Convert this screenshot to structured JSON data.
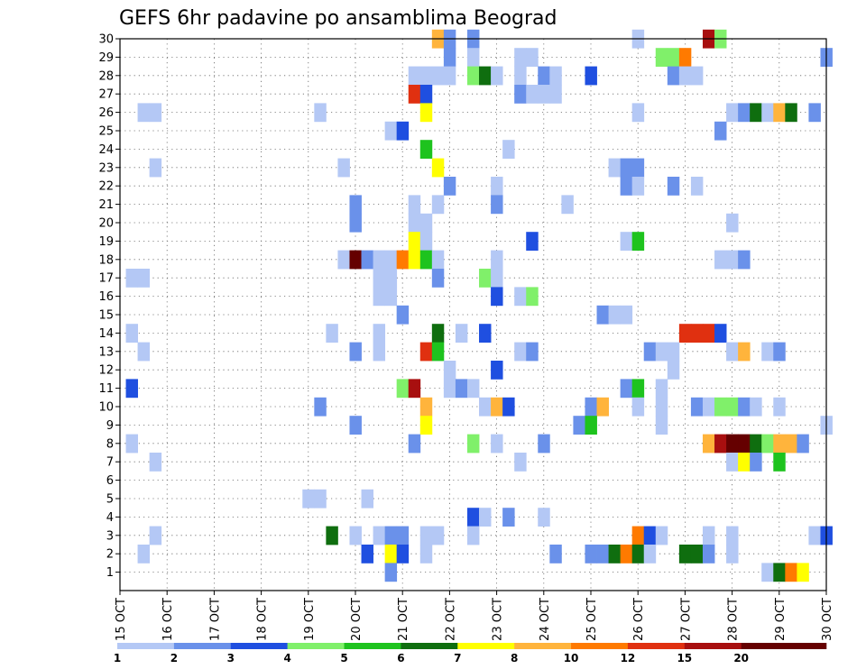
{
  "chart_data": {
    "type": "heatmap",
    "title": "GEFS 6hr padavine po ansamblima Beograd",
    "x_tick_labels": [
      "15 OCT",
      "16 OCT",
      "17 OCT",
      "18 OCT",
      "19 OCT",
      "20 OCT",
      "21 OCT",
      "22 OCT",
      "23 OCT",
      "24 OCT",
      "25 OCT",
      "26 OCT",
      "27 OCT",
      "28 OCT",
      "29 OCT",
      "30 OCT"
    ],
    "y_tick_labels": [
      "1",
      "2",
      "3",
      "4",
      "5",
      "6",
      "7",
      "8",
      "9",
      "10",
      "11",
      "12",
      "13",
      "14",
      "15",
      "16",
      "17",
      "18",
      "19",
      "20",
      "21",
      "22",
      "23",
      "24",
      "25",
      "26",
      "27",
      "28",
      "29",
      "30"
    ],
    "xlim_days": [
      15,
      30
    ],
    "ylim": [
      0,
      30
    ],
    "grid": true,
    "colorbar": {
      "labels": [
        "1",
        "2",
        "3",
        "4",
        "5",
        "6",
        "7",
        "8",
        "10",
        "12",
        "15",
        "20"
      ],
      "colors": [
        "#b4c8f5",
        "#6a91ea",
        "#1f4fe0",
        "#80f06a",
        "#1ec31e",
        "#0f6e0f",
        "#ffff00",
        "#ffb43c",
        "#ff7a00",
        "#e03010",
        "#a80f0f",
        "#650000"
      ]
    },
    "cells_note_format": "[day_of_month_fractional, member, class_index]",
    "cells": [
      [
        21.75,
        30,
        7
      ],
      [
        22.0,
        30,
        1
      ],
      [
        22.5,
        30,
        1
      ],
      [
        26.0,
        30,
        0
      ],
      [
        27.5,
        30,
        10
      ],
      [
        27.75,
        30,
        3
      ],
      [
        22.0,
        29,
        1
      ],
      [
        22.5,
        29,
        0
      ],
      [
        23.5,
        29,
        0
      ],
      [
        23.75,
        29,
        0
      ],
      [
        26.5,
        29,
        3
      ],
      [
        26.75,
        29,
        3
      ],
      [
        27.0,
        29,
        8
      ],
      [
        30.0,
        29,
        1
      ],
      [
        21.25,
        28,
        0
      ],
      [
        21.5,
        28,
        0
      ],
      [
        21.75,
        28,
        0
      ],
      [
        22.0,
        28,
        0
      ],
      [
        22.5,
        28,
        3
      ],
      [
        22.75,
        28,
        5
      ],
      [
        23.0,
        28,
        0
      ],
      [
        23.5,
        28,
        0
      ],
      [
        24.0,
        28,
        1
      ],
      [
        24.25,
        28,
        0
      ],
      [
        25.0,
        28,
        2
      ],
      [
        26.75,
        28,
        1
      ],
      [
        27.0,
        28,
        0
      ],
      [
        27.25,
        28,
        0
      ],
      [
        21.25,
        27,
        9
      ],
      [
        21.5,
        27,
        2
      ],
      [
        23.5,
        27,
        1
      ],
      [
        23.75,
        27,
        0
      ],
      [
        24.0,
        27,
        0
      ],
      [
        24.25,
        27,
        0
      ],
      [
        15.5,
        26,
        0
      ],
      [
        15.75,
        26,
        0
      ],
      [
        19.25,
        26,
        0
      ],
      [
        21.5,
        26,
        6
      ],
      [
        26.0,
        26,
        0
      ],
      [
        28.0,
        26,
        0
      ],
      [
        28.25,
        26,
        1
      ],
      [
        28.5,
        26,
        5
      ],
      [
        28.75,
        26,
        0
      ],
      [
        29.0,
        26,
        7
      ],
      [
        29.25,
        26,
        5
      ],
      [
        29.75,
        26,
        1
      ],
      [
        20.75,
        25,
        0
      ],
      [
        21.0,
        25,
        2
      ],
      [
        27.75,
        25,
        1
      ],
      [
        21.5,
        24,
        4
      ],
      [
        23.25,
        24,
        0
      ],
      [
        15.75,
        23,
        0
      ],
      [
        19.75,
        23,
        0
      ],
      [
        21.75,
        23,
        6
      ],
      [
        25.5,
        23,
        0
      ],
      [
        25.75,
        23,
        1
      ],
      [
        26.0,
        23,
        1
      ],
      [
        22.0,
        22,
        1
      ],
      [
        23.0,
        22,
        0
      ],
      [
        25.75,
        22,
        1
      ],
      [
        26.0,
        22,
        0
      ],
      [
        26.75,
        22,
        1
      ],
      [
        27.25,
        22,
        0
      ],
      [
        20.0,
        21,
        1
      ],
      [
        21.25,
        21,
        0
      ],
      [
        21.75,
        21,
        0
      ],
      [
        23.0,
        21,
        1
      ],
      [
        24.5,
        21,
        0
      ],
      [
        20.0,
        20,
        1
      ],
      [
        21.25,
        20,
        0
      ],
      [
        21.5,
        20,
        0
      ],
      [
        28.0,
        20,
        0
      ],
      [
        21.25,
        19,
        6
      ],
      [
        21.5,
        19,
        0
      ],
      [
        23.75,
        19,
        2
      ],
      [
        25.75,
        19,
        0
      ],
      [
        26.0,
        19,
        4
      ],
      [
        19.75,
        18,
        0
      ],
      [
        20.0,
        18,
        11
      ],
      [
        20.25,
        18,
        1
      ],
      [
        20.5,
        18,
        0
      ],
      [
        20.75,
        18,
        0
      ],
      [
        21.0,
        18,
        8
      ],
      [
        21.25,
        18,
        6
      ],
      [
        21.5,
        18,
        4
      ],
      [
        21.75,
        18,
        0
      ],
      [
        23.0,
        18,
        0
      ],
      [
        27.75,
        18,
        0
      ],
      [
        28.0,
        18,
        0
      ],
      [
        28.25,
        18,
        1
      ],
      [
        15.25,
        17,
        0
      ],
      [
        15.5,
        17,
        0
      ],
      [
        20.5,
        17,
        0
      ],
      [
        20.75,
        17,
        0
      ],
      [
        21.75,
        17,
        1
      ],
      [
        22.75,
        17,
        3
      ],
      [
        23.0,
        17,
        0
      ],
      [
        20.5,
        16,
        0
      ],
      [
        20.75,
        16,
        0
      ],
      [
        23.0,
        16,
        2
      ],
      [
        23.5,
        16,
        0
      ],
      [
        23.75,
        16,
        3
      ],
      [
        21.0,
        15,
        1
      ],
      [
        25.25,
        15,
        1
      ],
      [
        25.5,
        15,
        0
      ],
      [
        25.75,
        15,
        0
      ],
      [
        15.25,
        14,
        0
      ],
      [
        19.5,
        14,
        0
      ],
      [
        20.5,
        14,
        0
      ],
      [
        21.75,
        14,
        5
      ],
      [
        22.25,
        14,
        0
      ],
      [
        22.75,
        14,
        2
      ],
      [
        27.0,
        14,
        9
      ],
      [
        27.25,
        14,
        9
      ],
      [
        27.5,
        14,
        9
      ],
      [
        27.75,
        14,
        2
      ],
      [
        15.5,
        13,
        0
      ],
      [
        20.0,
        13,
        1
      ],
      [
        20.5,
        13,
        0
      ],
      [
        21.5,
        13,
        9
      ],
      [
        21.75,
        13,
        4
      ],
      [
        23.5,
        13,
        0
      ],
      [
        23.75,
        13,
        1
      ],
      [
        26.25,
        13,
        1
      ],
      [
        26.5,
        13,
        0
      ],
      [
        26.75,
        13,
        0
      ],
      [
        28.0,
        13,
        0
      ],
      [
        28.25,
        13,
        7
      ],
      [
        28.75,
        13,
        0
      ],
      [
        29.0,
        13,
        1
      ],
      [
        22.0,
        12,
        0
      ],
      [
        23.0,
        12,
        2
      ],
      [
        26.75,
        12,
        0
      ],
      [
        15.25,
        11,
        2
      ],
      [
        21.0,
        11,
        3
      ],
      [
        21.25,
        11,
        10
      ],
      [
        22.0,
        11,
        0
      ],
      [
        22.25,
        11,
        1
      ],
      [
        22.5,
        11,
        0
      ],
      [
        25.75,
        11,
        1
      ],
      [
        26.0,
        11,
        4
      ],
      [
        26.5,
        11,
        0
      ],
      [
        19.25,
        10,
        1
      ],
      [
        21.5,
        10,
        7
      ],
      [
        22.75,
        10,
        0
      ],
      [
        23.0,
        10,
        7
      ],
      [
        23.25,
        10,
        2
      ],
      [
        25.0,
        10,
        1
      ],
      [
        25.25,
        10,
        7
      ],
      [
        26.0,
        10,
        0
      ],
      [
        26.5,
        10,
        0
      ],
      [
        27.25,
        10,
        1
      ],
      [
        27.5,
        10,
        0
      ],
      [
        27.75,
        10,
        3
      ],
      [
        28.0,
        10,
        3
      ],
      [
        28.25,
        10,
        1
      ],
      [
        28.5,
        10,
        0
      ],
      [
        29.0,
        10,
        0
      ],
      [
        20.0,
        9,
        1
      ],
      [
        21.5,
        9,
        6
      ],
      [
        24.75,
        9,
        1
      ],
      [
        25.0,
        9,
        4
      ],
      [
        26.5,
        9,
        0
      ],
      [
        30.0,
        9,
        0
      ],
      [
        15.25,
        8,
        0
      ],
      [
        21.25,
        8,
        1
      ],
      [
        22.5,
        8,
        3
      ],
      [
        23.0,
        8,
        0
      ],
      [
        24.0,
        8,
        1
      ],
      [
        27.5,
        8,
        7
      ],
      [
        27.75,
        8,
        10
      ],
      [
        28.0,
        8,
        11
      ],
      [
        28.25,
        8,
        11
      ],
      [
        28.5,
        8,
        5
      ],
      [
        28.75,
        8,
        3
      ],
      [
        29.0,
        8,
        7
      ],
      [
        29.25,
        8,
        7
      ],
      [
        29.5,
        8,
        1
      ],
      [
        15.75,
        7,
        0
      ],
      [
        23.5,
        7,
        0
      ],
      [
        28.0,
        7,
        0
      ],
      [
        28.25,
        7,
        6
      ],
      [
        28.5,
        7,
        1
      ],
      [
        29.0,
        7,
        4
      ],
      [
        19.0,
        5,
        0
      ],
      [
        19.25,
        5,
        0
      ],
      [
        20.25,
        5,
        0
      ],
      [
        22.5,
        4,
        2
      ],
      [
        22.75,
        4,
        0
      ],
      [
        23.25,
        4,
        1
      ],
      [
        24.0,
        4,
        0
      ],
      [
        15.75,
        3,
        0
      ],
      [
        19.5,
        3,
        5
      ],
      [
        20.0,
        3,
        0
      ],
      [
        20.5,
        3,
        0
      ],
      [
        20.75,
        3,
        1
      ],
      [
        21.0,
        3,
        1
      ],
      [
        21.5,
        3,
        0
      ],
      [
        21.75,
        3,
        0
      ],
      [
        22.5,
        3,
        0
      ],
      [
        26.0,
        3,
        8
      ],
      [
        26.25,
        3,
        2
      ],
      [
        26.5,
        3,
        0
      ],
      [
        27.5,
        3,
        0
      ],
      [
        28.0,
        3,
        0
      ],
      [
        29.75,
        3,
        0
      ],
      [
        30.0,
        3,
        2
      ],
      [
        15.5,
        2,
        0
      ],
      [
        20.25,
        2,
        2
      ],
      [
        20.75,
        2,
        6
      ],
      [
        21.0,
        2,
        2
      ],
      [
        21.5,
        2,
        0
      ],
      [
        24.25,
        2,
        1
      ],
      [
        25.0,
        2,
        1
      ],
      [
        25.25,
        2,
        1
      ],
      [
        25.5,
        2,
        5
      ],
      [
        25.75,
        2,
        8
      ],
      [
        26.0,
        2,
        5
      ],
      [
        26.25,
        2,
        0
      ],
      [
        27.0,
        2,
        5
      ],
      [
        27.25,
        2,
        5
      ],
      [
        27.5,
        2,
        1
      ],
      [
        28.0,
        2,
        0
      ],
      [
        20.75,
        1,
        1
      ],
      [
        28.75,
        1,
        0
      ],
      [
        29.0,
        1,
        5
      ],
      [
        29.25,
        1,
        8
      ],
      [
        29.5,
        1,
        6
      ]
    ]
  }
}
